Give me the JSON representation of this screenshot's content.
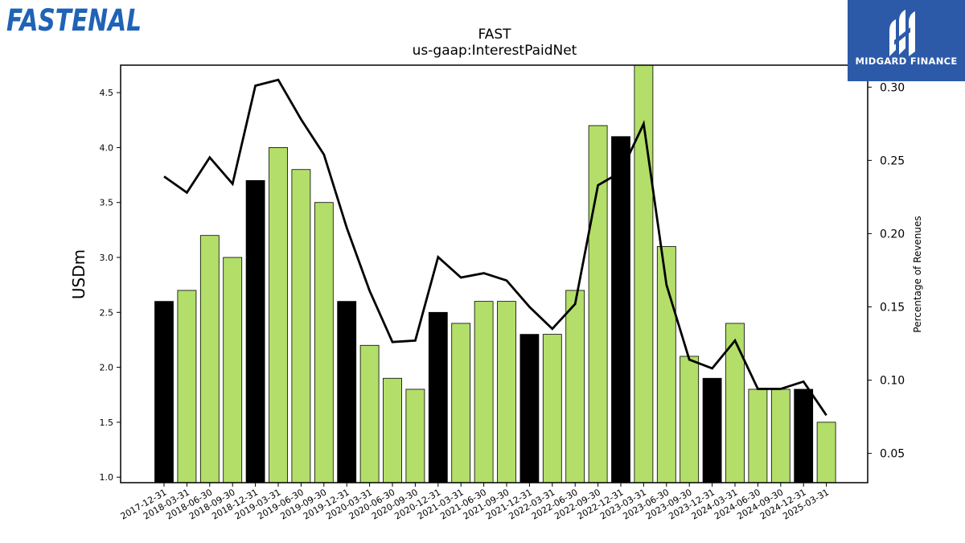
{
  "branding": {
    "left_logo_text": "FASTENAL",
    "right_logo_text": "MIDGARD FINANCE",
    "left_color": "#1f63b7",
    "right_bg": "#2d5aa8"
  },
  "chart_data": {
    "type": "bar",
    "title": "FAST",
    "subtitle": "us-gaap:InterestPaidNet",
    "ylabel": "USDm",
    "y2label": "Percentage of Revenues",
    "ylim": [
      0.95,
      4.75
    ],
    "y2lim": [
      0.03,
      0.315
    ],
    "yticks": [
      "1.0",
      "1.5",
      "2.0",
      "2.5",
      "3.0",
      "3.5",
      "4.0",
      "4.5"
    ],
    "y2ticks": [
      "0.05",
      "0.10",
      "0.15",
      "0.20",
      "0.25",
      "0.30"
    ],
    "categories": [
      "2017-12-31",
      "2018-03-31",
      "2018-06-30",
      "2018-09-30",
      "2018-12-31",
      "2019-03-31",
      "2019-06-30",
      "2019-09-30",
      "2019-12-31",
      "2020-03-31",
      "2020-06-30",
      "2020-09-30",
      "2020-12-31",
      "2021-03-31",
      "2021-06-30",
      "2021-09-30",
      "2021-12-31",
      "2022-03-31",
      "2022-06-30",
      "2022-09-30",
      "2022-12-31",
      "2023-03-31",
      "2023-06-30",
      "2023-09-30",
      "2023-12-31",
      "2024-03-31",
      "2024-06-30",
      "2024-09-30",
      "2024-12-31",
      "2025-03-31"
    ],
    "series": [
      {
        "kind": "bar",
        "values": [
          2.6,
          2.7,
          3.2,
          3.0,
          3.7,
          4.0,
          3.8,
          3.5,
          2.6,
          2.2,
          1.9,
          1.8,
          2.5,
          2.4,
          2.6,
          2.6,
          2.3,
          2.3,
          2.7,
          4.2,
          4.1,
          4.75,
          3.1,
          2.1,
          1.9,
          2.4,
          1.8,
          1.8,
          1.8,
          1.5
        ],
        "year_end": [
          true,
          false,
          false,
          false,
          true,
          false,
          false,
          false,
          true,
          false,
          false,
          false,
          true,
          false,
          false,
          false,
          true,
          false,
          false,
          false,
          true,
          false,
          false,
          false,
          true,
          false,
          false,
          false,
          true,
          false
        ]
      },
      {
        "kind": "line",
        "axis": "right",
        "values": [
          0.239,
          0.228,
          0.252,
          0.234,
          0.301,
          0.305,
          0.278,
          0.254,
          0.204,
          0.161,
          0.126,
          0.127,
          0.184,
          0.17,
          0.173,
          0.168,
          0.15,
          0.135,
          0.152,
          0.233,
          0.242,
          0.275,
          0.165,
          0.114,
          0.108,
          0.127,
          0.094,
          0.094,
          0.099,
          0.076
        ]
      }
    ],
    "colors": {
      "bar": "#b3de69",
      "bar_year_end": "#000000",
      "line": "#000000"
    },
    "grid": false,
    "legend": "none"
  }
}
